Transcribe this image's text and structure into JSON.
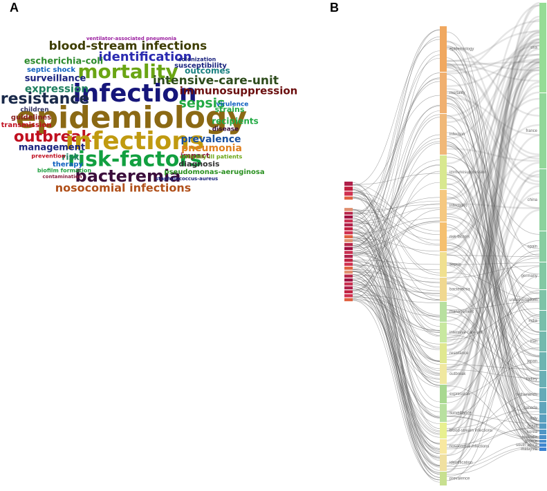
{
  "panels": {
    "a": {
      "label": "A",
      "words": [
        "ventilator-associated pneumonia",
        "blood-stream infections",
        "identification",
        "escherichia-coli",
        "mortality",
        "intensive-care-unit",
        "surveillance",
        "outcomes",
        "septic shock",
        "infection",
        "resistance",
        "expression",
        "immunosuppression",
        "sepsis",
        "epidemiology",
        "outbreak",
        "infections",
        "management",
        "risk-factors",
        "pneumonia",
        "prevalence",
        "bacteremia",
        "pseudomonas-aeruginosa",
        "nosocomial infections",
        "diagnosis",
        "transmission",
        "guidelines",
        "children",
        "risk",
        "therapy",
        "biofilm formation",
        "recipients",
        "strains",
        "virulence",
        "disease",
        "impact",
        "staphylococcus-aureus",
        "susceptibility",
        "colonization",
        "prevention",
        "contamination",
        "critically-ill patients"
      ]
    },
    "b": {
      "label": "B",
      "keywords": [
        "epidemiology",
        "mortality",
        "infection",
        "immunosuppression",
        "infections",
        "risk-factors",
        "sepsis",
        "bacteremia",
        "management",
        "intensive-care-unit",
        "resistance",
        "outbreak",
        "expression",
        "surveillance",
        "blood-stream infections",
        "nosocomial infections",
        "identification",
        "prevalence"
      ],
      "countries": [
        "usa",
        "france",
        "china",
        "spain",
        "germany",
        "united kingdom",
        "india",
        "iran",
        "japan",
        "turkey",
        "netherlands",
        "canada",
        "italy",
        "brazil",
        "korea",
        "australia",
        "greece",
        "south africa",
        "malaysia"
      ]
    }
  }
}
